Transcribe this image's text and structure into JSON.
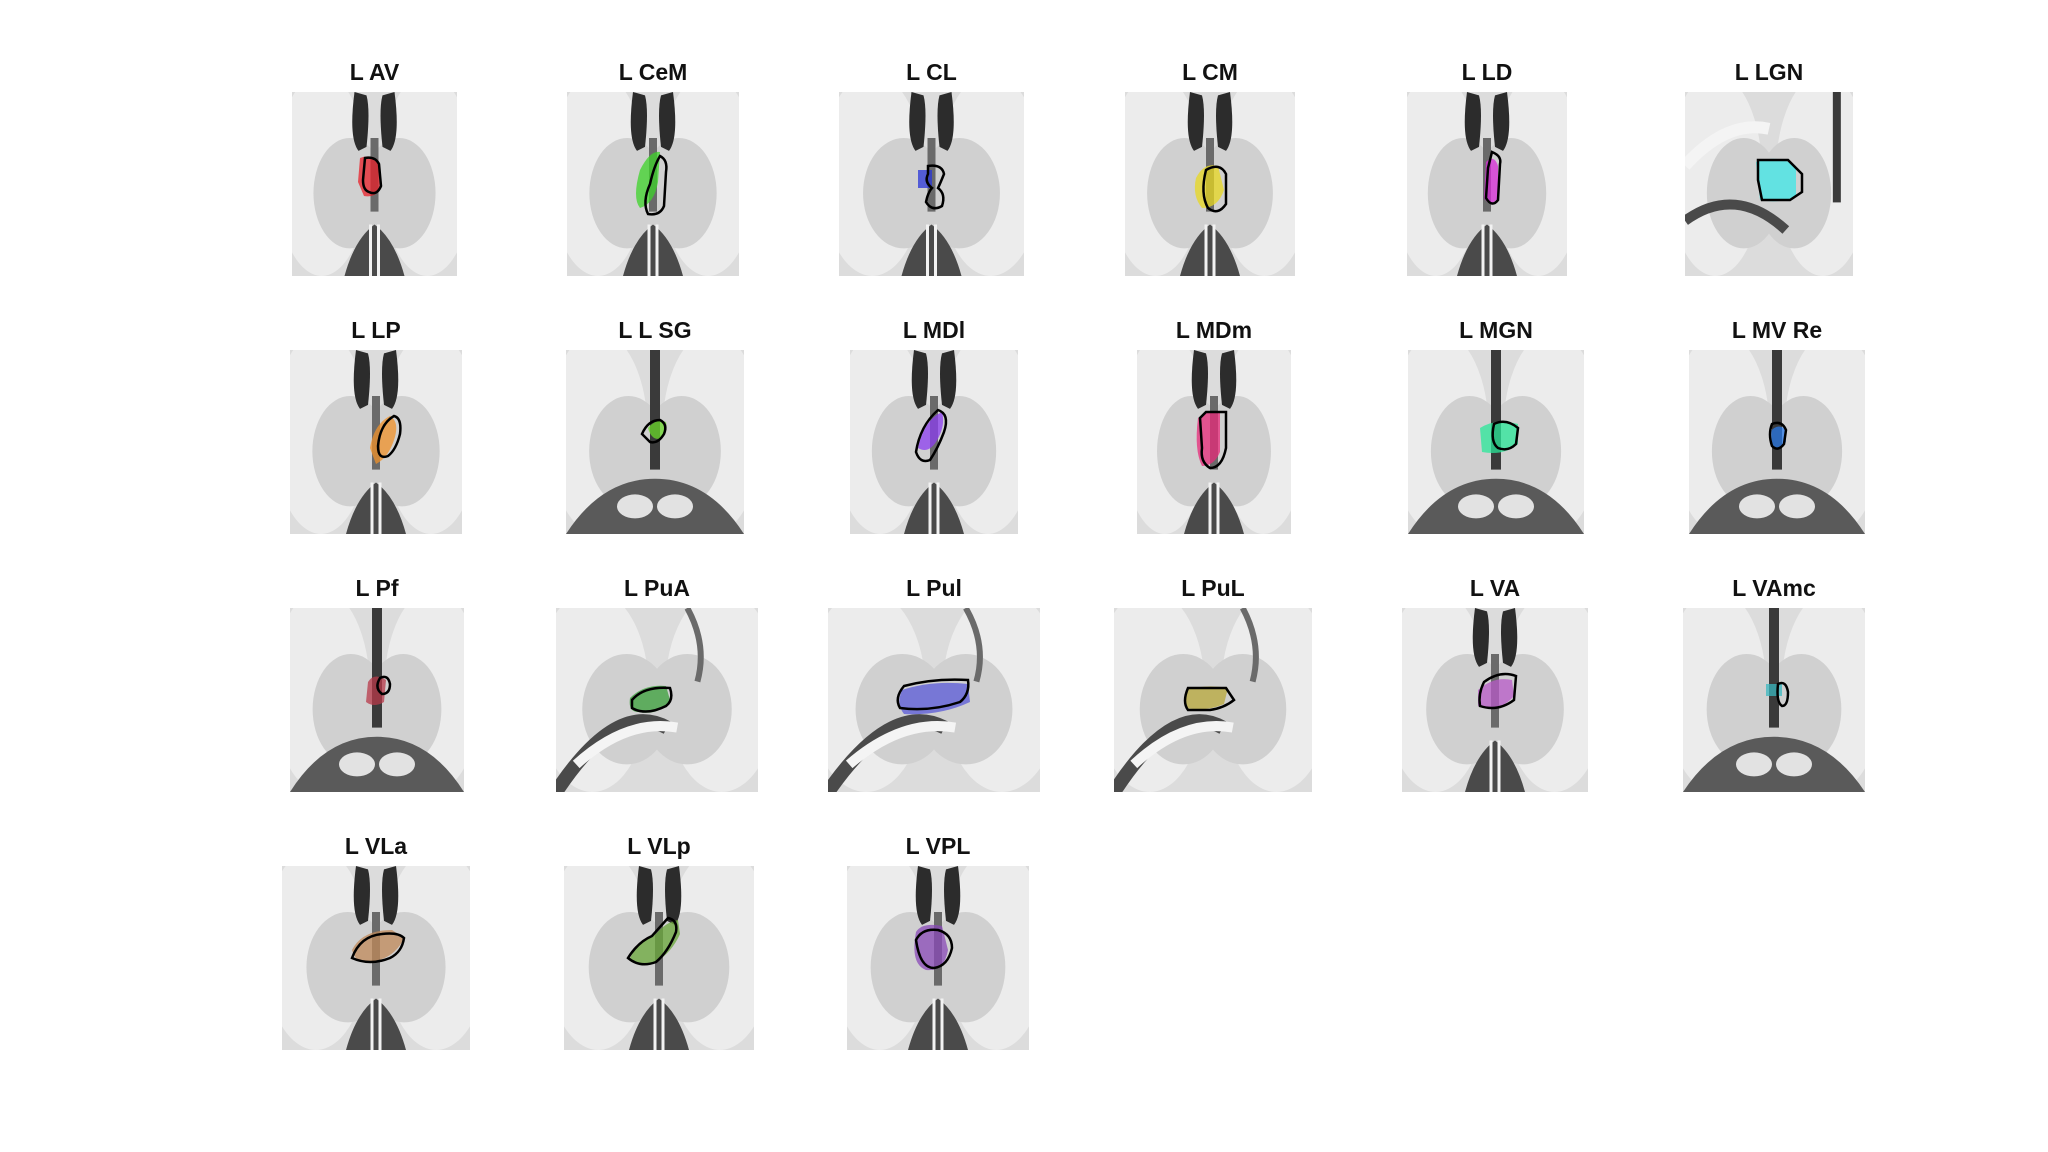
{
  "figure": {
    "panels": [
      {
        "title": "L AV",
        "color": "#e8202a"
      },
      {
        "title": "L CeM",
        "color": "#3ed42a"
      },
      {
        "title": "L CL",
        "color": "#2a35d8"
      },
      {
        "title": "L CM",
        "color": "#e8d820"
      },
      {
        "title": "L LD",
        "color": "#d82ad8"
      },
      {
        "title": "L LGN",
        "color": "#3ee8e8"
      },
      {
        "title": "L LP",
        "color": "#f0922a"
      },
      {
        "title": "L L SG",
        "color": "#6ad82a"
      },
      {
        "title": "L MDl",
        "color": "#8c3ef0"
      },
      {
        "title": "L MDm",
        "color": "#e82a7a"
      },
      {
        "title": "L MGN",
        "color": "#2ae89a"
      },
      {
        "title": "L MV Re",
        "color": "#2a7ae8"
      },
      {
        "title": "L Pf",
        "color": "#b83a4a"
      },
      {
        "title": "L PuA",
        "color": "#3aa03a"
      },
      {
        "title": "L Pul",
        "color": "#5a5ad8"
      },
      {
        "title": "L PuL",
        "color": "#b8a83a"
      },
      {
        "title": "L VA",
        "color": "#b85ac8"
      },
      {
        "title": "L VAmc",
        "color": "#3ab8c0"
      },
      {
        "title": "L VLa",
        "color": "#c08a5a"
      },
      {
        "title": "L VLp",
        "color": "#6aa83a"
      },
      {
        "title": "L VPL",
        "color": "#8a4ab8"
      }
    ]
  }
}
